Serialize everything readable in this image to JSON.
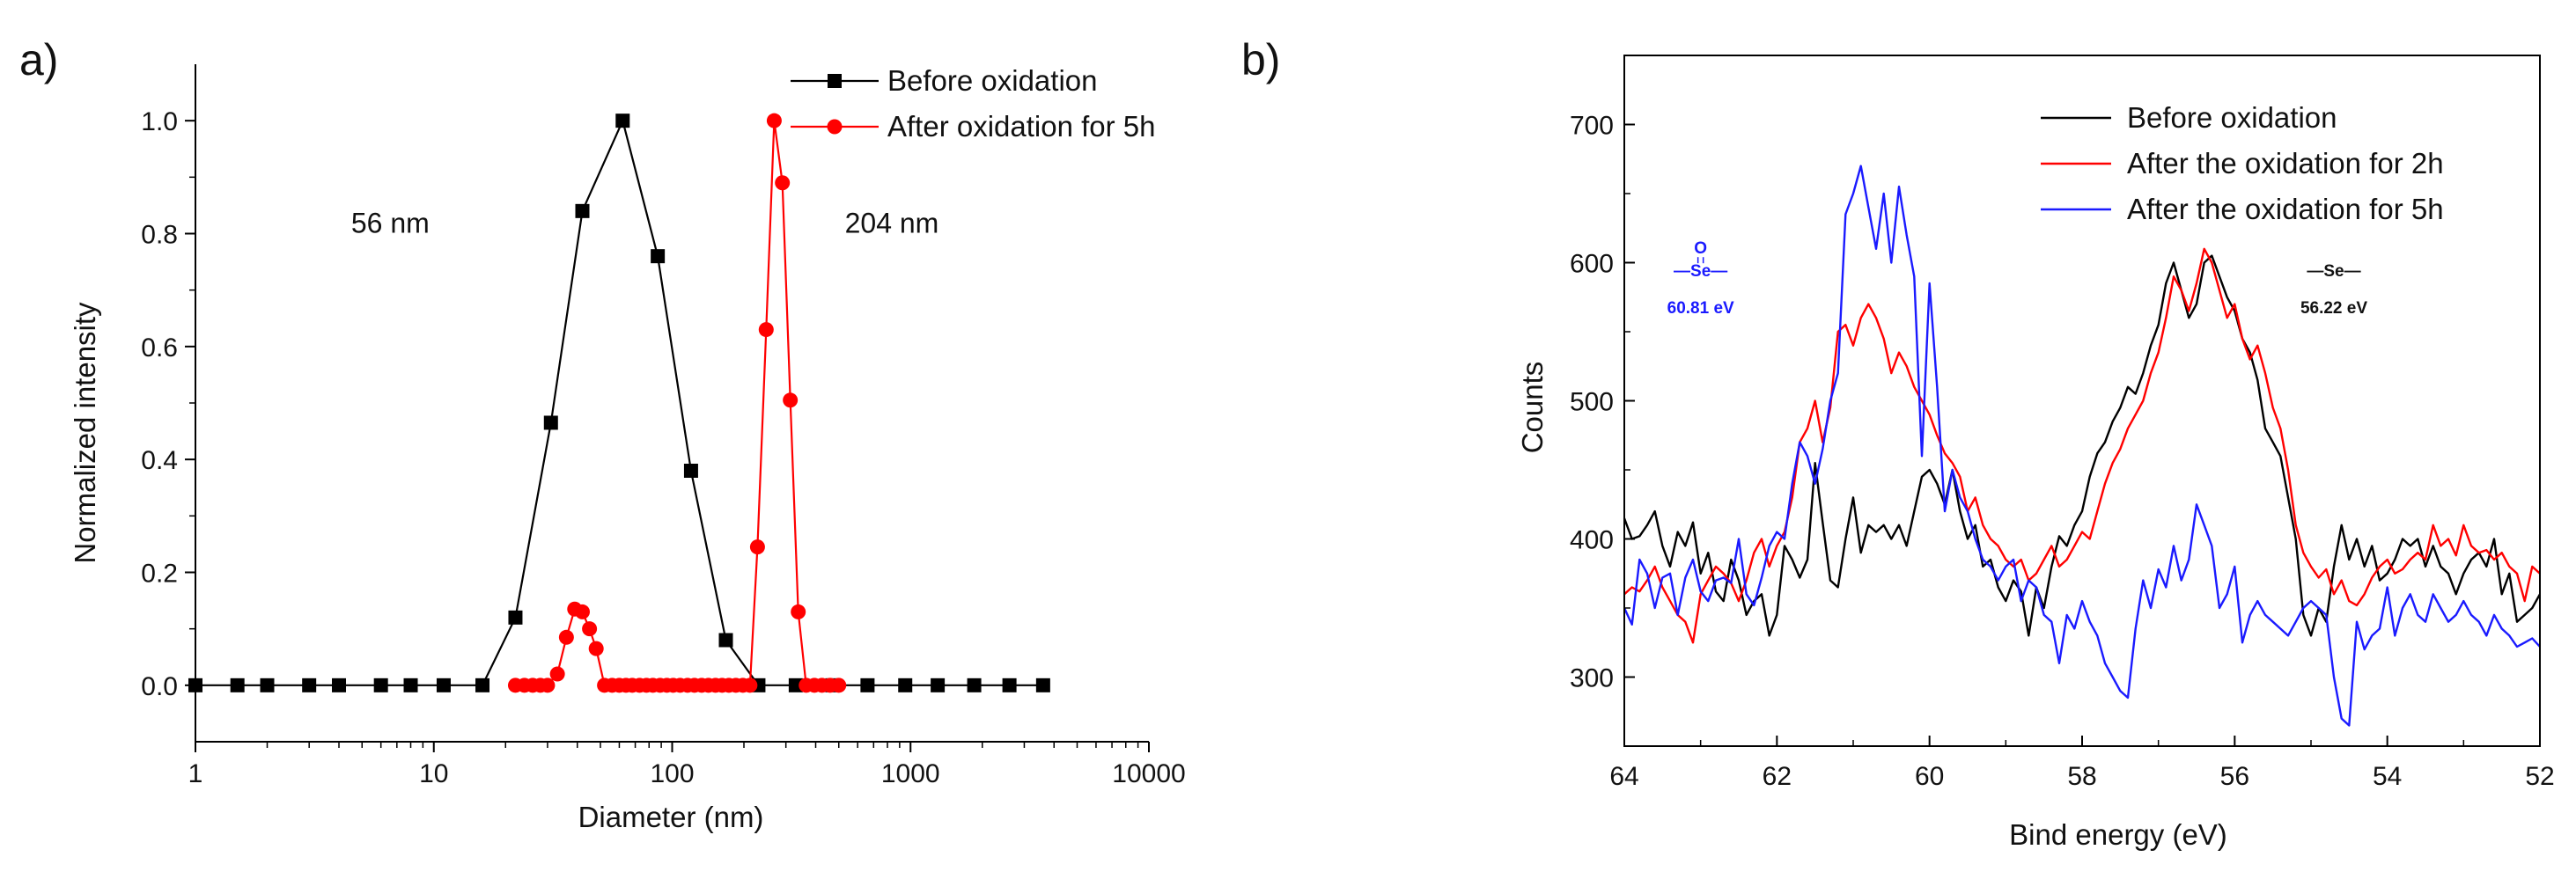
{
  "panels": {
    "a": {
      "label": "a)"
    },
    "b": {
      "label": "b)"
    }
  },
  "chart_data": [
    {
      "type": "line",
      "panel": "a",
      "xscale": "log",
      "xlabel": "Diameter (nm)",
      "ylabel": "Normalized intensity",
      "xlim": [
        1,
        10000
      ],
      "ylim": [
        -0.1,
        1.1
      ],
      "xticks": [
        1,
        10,
        100,
        1000,
        10000
      ],
      "xtick_labels": [
        "1",
        "10",
        "100",
        "1000",
        "10000"
      ],
      "yticks": [
        0.0,
        0.2,
        0.4,
        0.6,
        0.8,
        1.0
      ],
      "ytick_labels": [
        "0.0",
        "0.2",
        "0.4",
        "0.6",
        "0.8",
        "1.0"
      ],
      "legend_position": "top-right",
      "annotations": [
        {
          "text": "56 nm",
          "x": 4.5,
          "y": 0.82
        },
        {
          "text": "204 nm",
          "x": 530,
          "y": 0.82
        }
      ],
      "series": [
        {
          "name": "Before oxidation",
          "color": "#000000",
          "marker": "square",
          "x": [
            1,
            1.5,
            2,
            3,
            4,
            6,
            8,
            11,
            16,
            22,
            31,
            42,
            62,
            87,
            120,
            168,
            230,
            330,
            470,
            660,
            950,
            1300,
            1850,
            2600,
            3600
          ],
          "y": [
            0,
            0,
            0,
            0,
            0,
            0,
            0,
            0,
            0,
            0.12,
            0.465,
            0.84,
            1.0,
            0.76,
            0.38,
            0.08,
            0,
            0,
            0,
            0,
            0,
            0,
            0,
            0,
            0
          ]
        },
        {
          "name": "After oxidation for 5h",
          "color": "#ff0000",
          "marker": "circle",
          "x": [
            22,
            24,
            26,
            28,
            30,
            33,
            36,
            39,
            42,
            45,
            48,
            52,
            56,
            60,
            64,
            68,
            73,
            78,
            83,
            89,
            95,
            101,
            108,
            116,
            124,
            133,
            142,
            152,
            162,
            173,
            185,
            198,
            212,
            228,
            248,
            268,
            290,
            313,
            338,
            365,
            395,
            425,
            460,
            500
          ],
          "y": [
            0,
            0,
            0,
            0,
            0,
            0.02,
            0.085,
            0.135,
            0.13,
            0.1,
            0.065,
            0,
            0,
            0,
            0,
            0,
            0,
            0,
            0,
            0,
            0,
            0,
            0,
            0,
            0,
            0,
            0,
            0,
            0,
            0,
            0,
            0,
            0,
            0.245,
            0.63,
            1.0,
            0.89,
            0.505,
            0.13,
            0,
            0,
            0,
            0,
            0
          ]
        }
      ]
    },
    {
      "type": "line",
      "panel": "b",
      "xlabel": "Bind energy (eV)",
      "ylabel": "Counts",
      "xlim": [
        64,
        52
      ],
      "ylim": [
        250,
        750
      ],
      "xticks": [
        64,
        62,
        60,
        58,
        56,
        54,
        52
      ],
      "xtick_labels": [
        "64",
        "62",
        "60",
        "58",
        "56",
        "54",
        "52"
      ],
      "yticks": [
        300,
        400,
        500,
        600,
        700
      ],
      "ytick_labels": [
        "300",
        "400",
        "500",
        "600",
        "700"
      ],
      "legend_position": "top-right",
      "annotations": [
        {
          "symbol_top": "O",
          "symbol_main": "—Se—",
          "text": "60.81 eV",
          "color": "#1a1aff",
          "x": 63.0,
          "y": 590
        },
        {
          "symbol_main": "—Se—",
          "text": "56.22 eV",
          "color": "#111111",
          "x": 54.7,
          "y": 590
        }
      ],
      "series": [
        {
          "name": "Before oxidation",
          "color": "#000000",
          "x": [
            64,
            63.9,
            63.8,
            63.7,
            63.6,
            63.5,
            63.4,
            63.3,
            63.2,
            63.1,
            63,
            62.9,
            62.8,
            62.7,
            62.6,
            62.5,
            62.4,
            62.3,
            62.2,
            62.1,
            62,
            61.9,
            61.8,
            61.7,
            61.6,
            61.5,
            61.4,
            61.3,
            61.2,
            61.1,
            61,
            60.9,
            60.8,
            60.7,
            60.6,
            60.5,
            60.4,
            60.3,
            60.2,
            60.1,
            60,
            59.9,
            59.8,
            59.7,
            59.6,
            59.5,
            59.4,
            59.3,
            59.2,
            59.1,
            59,
            58.9,
            58.8,
            58.7,
            58.6,
            58.5,
            58.4,
            58.3,
            58.2,
            58.1,
            58,
            57.9,
            57.8,
            57.7,
            57.6,
            57.5,
            57.4,
            57.3,
            57.2,
            57.1,
            57,
            56.9,
            56.8,
            56.7,
            56.6,
            56.5,
            56.4,
            56.3,
            56.2,
            56.1,
            56,
            55.9,
            55.8,
            55.7,
            55.6,
            55.5,
            55.4,
            55.3,
            55.2,
            55.1,
            55,
            54.9,
            54.8,
            54.7,
            54.6,
            54.5,
            54.4,
            54.3,
            54.2,
            54.1,
            54,
            53.9,
            53.8,
            53.7,
            53.6,
            53.5,
            53.4,
            53.3,
            53.2,
            53.1,
            53,
            52.9,
            52.8,
            52.7,
            52.6,
            52.5,
            52.4,
            52.3,
            52.2,
            52.1,
            52
          ],
          "y": [
            415,
            400,
            402,
            410,
            420,
            395,
            380,
            405,
            395,
            412,
            375,
            390,
            362,
            355,
            385,
            370,
            345,
            355,
            360,
            330,
            345,
            395,
            385,
            372,
            385,
            455,
            412,
            370,
            365,
            400,
            430,
            390,
            410,
            405,
            410,
            400,
            410,
            395,
            420,
            445,
            450,
            440,
            425,
            450,
            420,
            400,
            410,
            380,
            385,
            365,
            355,
            370,
            362,
            330,
            365,
            350,
            380,
            402,
            395,
            410,
            420,
            445,
            462,
            470,
            485,
            495,
            510,
            505,
            520,
            540,
            555,
            585,
            600,
            580,
            560,
            570,
            600,
            605,
            590,
            575,
            565,
            545,
            535,
            515,
            480,
            470,
            460,
            430,
            400,
            345,
            330,
            350,
            340,
            380,
            410,
            385,
            400,
            380,
            395,
            370,
            375,
            385,
            400,
            395,
            400,
            380,
            395,
            380,
            375,
            360,
            375,
            385,
            390,
            380,
            400,
            360,
            375,
            340,
            345,
            350,
            360
          ]
        },
        {
          "name": "After the oxidation for 2h",
          "color": "#ff0000",
          "x": [
            64,
            63.9,
            63.8,
            63.7,
            63.6,
            63.5,
            63.4,
            63.3,
            63.2,
            63.1,
            63,
            62.9,
            62.8,
            62.7,
            62.6,
            62.5,
            62.4,
            62.3,
            62.2,
            62.1,
            62,
            61.9,
            61.8,
            61.7,
            61.6,
            61.5,
            61.4,
            61.3,
            61.2,
            61.1,
            61,
            60.9,
            60.8,
            60.7,
            60.6,
            60.5,
            60.4,
            60.3,
            60.2,
            60.1,
            60,
            59.9,
            59.8,
            59.7,
            59.6,
            59.5,
            59.4,
            59.3,
            59.2,
            59.1,
            59,
            58.9,
            58.8,
            58.7,
            58.6,
            58.5,
            58.4,
            58.3,
            58.2,
            58.1,
            58,
            57.9,
            57.8,
            57.7,
            57.6,
            57.5,
            57.4,
            57.3,
            57.2,
            57.1,
            57,
            56.9,
            56.8,
            56.7,
            56.6,
            56.5,
            56.4,
            56.3,
            56.2,
            56.1,
            56,
            55.9,
            55.8,
            55.7,
            55.6,
            55.5,
            55.4,
            55.3,
            55.2,
            55.1,
            55,
            54.9,
            54.8,
            54.7,
            54.6,
            54.5,
            54.4,
            54.3,
            54.2,
            54.1,
            54,
            53.9,
            53.8,
            53.7,
            53.6,
            53.5,
            53.4,
            53.3,
            53.2,
            53.1,
            53,
            52.9,
            52.8,
            52.7,
            52.6,
            52.5,
            52.4,
            52.3,
            52.2,
            52.1,
            52
          ],
          "y": [
            360,
            365,
            362,
            370,
            380,
            365,
            355,
            345,
            340,
            325,
            360,
            370,
            380,
            375,
            368,
            355,
            370,
            390,
            400,
            380,
            395,
            405,
            430,
            470,
            480,
            500,
            470,
            495,
            550,
            555,
            540,
            560,
            570,
            560,
            545,
            520,
            535,
            525,
            510,
            500,
            490,
            475,
            462,
            455,
            445,
            420,
            430,
            410,
            400,
            395,
            385,
            380,
            385,
            370,
            375,
            385,
            395,
            380,
            385,
            395,
            405,
            400,
            420,
            440,
            455,
            465,
            480,
            490,
            500,
            520,
            535,
            560,
            590,
            580,
            565,
            585,
            610,
            600,
            580,
            560,
            570,
            545,
            530,
            540,
            520,
            495,
            480,
            450,
            410,
            390,
            380,
            372,
            378,
            360,
            370,
            355,
            352,
            360,
            372,
            380,
            385,
            375,
            378,
            385,
            390,
            385,
            410,
            395,
            400,
            388,
            410,
            395,
            390,
            392,
            385,
            390,
            380,
            375,
            355,
            380,
            375
          ]
        },
        {
          "name": "After the oxidation for 5h",
          "color": "#1a1aff",
          "x": [
            64,
            63.9,
            63.8,
            63.7,
            63.6,
            63.5,
            63.4,
            63.3,
            63.2,
            63.1,
            63,
            62.9,
            62.8,
            62.7,
            62.6,
            62.5,
            62.4,
            62.3,
            62.2,
            62.1,
            62,
            61.9,
            61.8,
            61.7,
            61.6,
            61.5,
            61.4,
            61.3,
            61.2,
            61.1,
            61,
            60.9,
            60.8,
            60.7,
            60.6,
            60.5,
            60.4,
            60.3,
            60.2,
            60.1,
            60,
            59.9,
            59.8,
            59.7,
            59.6,
            59.5,
            59.4,
            59.3,
            59.2,
            59.1,
            59,
            58.9,
            58.8,
            58.7,
            58.6,
            58.5,
            58.4,
            58.3,
            58.2,
            58.1,
            58,
            57.9,
            57.8,
            57.7,
            57.6,
            57.5,
            57.4,
            57.3,
            57.2,
            57.1,
            57,
            56.9,
            56.8,
            56.7,
            56.6,
            56.5,
            56.4,
            56.3,
            56.2,
            56.1,
            56,
            55.9,
            55.8,
            55.7,
            55.6,
            55.5,
            55.4,
            55.3,
            55.2,
            55.1,
            55,
            54.9,
            54.8,
            54.7,
            54.6,
            54.5,
            54.4,
            54.3,
            54.2,
            54.1,
            54,
            53.9,
            53.8,
            53.7,
            53.6,
            53.5,
            53.4,
            53.3,
            53.2,
            53.1,
            53,
            52.9,
            52.8,
            52.7,
            52.6,
            52.5,
            52.4,
            52.3,
            52.2,
            52.1,
            52
          ],
          "y": [
            350,
            338,
            385,
            375,
            350,
            372,
            375,
            345,
            372,
            385,
            362,
            355,
            370,
            372,
            368,
            400,
            360,
            352,
            372,
            395,
            405,
            400,
            440,
            470,
            460,
            440,
            465,
            500,
            520,
            635,
            650,
            670,
            640,
            610,
            650,
            600,
            655,
            620,
            590,
            460,
            585,
            510,
            420,
            450,
            430,
            420,
            400,
            385,
            380,
            370,
            380,
            385,
            355,
            370,
            365,
            345,
            340,
            310,
            345,
            335,
            355,
            340,
            330,
            310,
            300,
            290,
            285,
            335,
            370,
            350,
            378,
            365,
            395,
            370,
            385,
            425,
            410,
            395,
            350,
            360,
            380,
            325,
            345,
            355,
            345,
            340,
            335,
            330,
            340,
            350,
            355,
            350,
            345,
            300,
            270,
            265,
            340,
            320,
            330,
            335,
            365,
            330,
            350,
            360,
            345,
            340,
            360,
            350,
            340,
            345,
            355,
            345,
            340,
            330,
            345,
            335,
            330,
            322,
            325,
            328,
            322
          ]
        }
      ]
    }
  ]
}
